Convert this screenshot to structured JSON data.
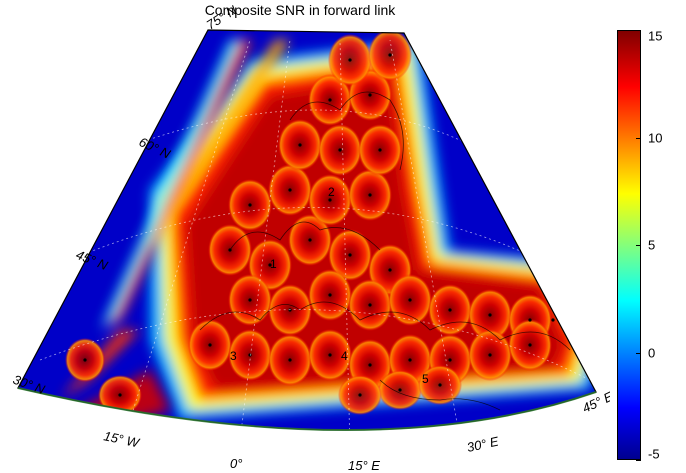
{
  "chart_data": {
    "type": "heatmap",
    "title": "Composite SNR in forward link",
    "colorbar": {
      "min": -5,
      "max": 15,
      "ticks": [
        -5,
        0,
        5,
        10,
        15
      ],
      "colormap": "jet"
    },
    "lat_labels": [
      "30° N",
      "45° N",
      "60° N",
      "75° N"
    ],
    "lon_labels": [
      "15° W",
      "0°",
      "15° E",
      "30° E",
      "45° E"
    ],
    "region_markers": [
      "1",
      "2",
      "3",
      "4",
      "5"
    ]
  },
  "colors": {
    "low": "#00008f",
    "mid": "#ffff00",
    "high": "#800000",
    "hot": "#ff0000"
  }
}
